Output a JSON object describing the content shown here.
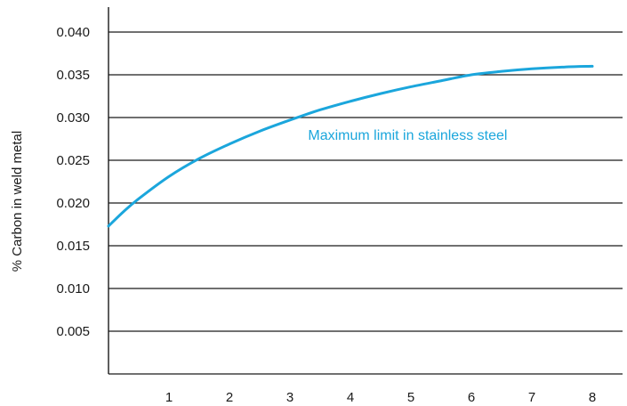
{
  "chart_data": {
    "type": "line",
    "title": "",
    "xlabel": "",
    "ylabel": "% Carbon in weld metal",
    "x_ticks": [
      "1",
      "2",
      "3",
      "4",
      "5",
      "6",
      "7",
      "8"
    ],
    "y_ticks": [
      "0.005",
      "0.010",
      "0.015",
      "0.020",
      "0.025",
      "0.030",
      "0.035",
      "0.040"
    ],
    "xlim": [
      0,
      8.5
    ],
    "ylim": [
      0,
      0.0425
    ],
    "grid": "horizontal",
    "series": [
      {
        "color": "#1ba6dc",
        "x": [
          0,
          0.25,
          0.5,
          1,
          1.5,
          2,
          2.5,
          3,
          3.5,
          4,
          4.5,
          5,
          5.5,
          6,
          6.5,
          7,
          7.5,
          8
        ],
        "y": [
          0.0173,
          0.019,
          0.0205,
          0.0231,
          0.0252,
          0.0269,
          0.0284,
          0.0297,
          0.0309,
          0.0319,
          0.0328,
          0.0336,
          0.0343,
          0.035,
          0.0354,
          0.0357,
          0.0359,
          0.036
        ]
      }
    ],
    "annotation": {
      "text": "Maximum limit in stainless steel",
      "color": "#1ba6dc",
      "x": 3.3,
      "y": 0.0274
    }
  }
}
